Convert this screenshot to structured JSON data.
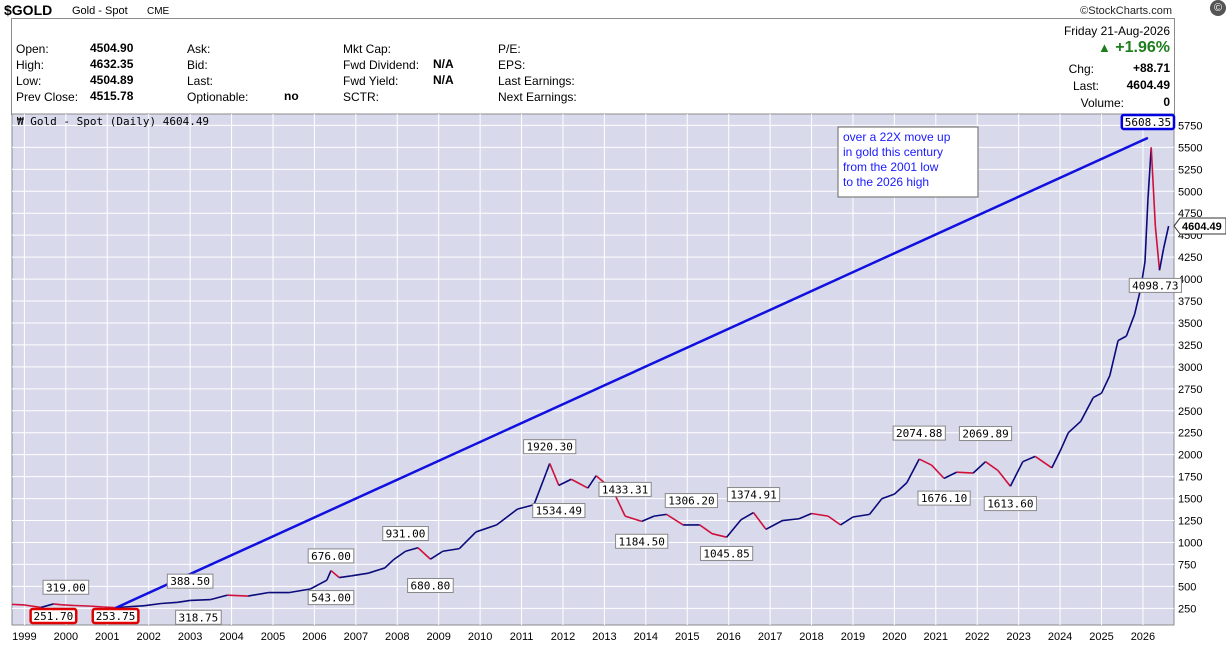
{
  "header": {
    "symbol": "$GOLD",
    "name": "Gold - Spot",
    "exchange": "CME",
    "brand": "©StockCharts.com"
  },
  "quote": {
    "open_label": "Open:",
    "open": "4504.90",
    "high_label": "High:",
    "high": "4632.35",
    "low_label": "Low:",
    "low": "4504.89",
    "prev_close_label": "Prev Close:",
    "prev_close": "4515.78",
    "ask_label": "Ask:",
    "bid_label": "Bid:",
    "last_label": "Last:",
    "optionable_label": "Optionable:",
    "optionable": "no",
    "mktcap_label": "Mkt Cap:",
    "fwd_div_label": "Fwd Dividend:",
    "fwd_div": "N/A",
    "fwd_yield_label": "Fwd Yield:",
    "fwd_yield": "N/A",
    "sctr_label": "SCTR:",
    "pe_label": "P/E:",
    "eps_label": "EPS:",
    "last_earn_label": "Last Earnings:",
    "next_earn_label": "Next Earnings:",
    "date": "Friday  21-Aug-2026",
    "pct_change": "+1.96%",
    "chg_label": "Chg:",
    "chg": "+88.71",
    "last2_label": "Last:",
    "last": "4604.49",
    "volume_label": "Volume:",
    "volume": "0"
  },
  "legend": "Gold - Spot (Daily) 4604.49",
  "colors": {
    "plot_bg": "#d9d9ec",
    "grid": "#ffffff",
    "price_up": "#0a0a7a",
    "price_down": "#d0103a",
    "trendline": "#1010e0",
    "highlight_red": "#e00000",
    "highlight_blue": "#0000e0",
    "annotation_text": "#1a1aff"
  },
  "chart_data": {
    "type": "line",
    "title": "Gold - Spot (Daily) 4604.49",
    "x_ticks": [
      "1999",
      "2000",
      "2001",
      "2002",
      "2003",
      "2004",
      "2005",
      "2006",
      "2007",
      "2008",
      "2009",
      "2010",
      "2011",
      "2012",
      "2013",
      "2014",
      "2015",
      "2016",
      "2017",
      "2018",
      "2019",
      "2020",
      "2021",
      "2022",
      "2023",
      "2024",
      "2025",
      "2026"
    ],
    "y_ticks": [
      250,
      500,
      750,
      1000,
      1250,
      1500,
      1750,
      2000,
      2250,
      2500,
      2750,
      3000,
      3250,
      3500,
      3750,
      4000,
      4250,
      4500,
      4750,
      5000,
      5250,
      5500,
      5750
    ],
    "ylim": [
      60,
      5880
    ],
    "xlim": [
      1998.7,
      2026.75
    ],
    "grid": true,
    "series": [
      {
        "x": [
          1998.7,
          1999.0,
          1999.4,
          1999.7,
          1999.9,
          2000.2,
          2000.6,
          2000.9,
          2001.2,
          2001.5,
          2001.9,
          2002.3,
          2002.7,
          2003.0,
          2003.5,
          2003.9,
          2004.4,
          2004.9,
          2005.4,
          2005.9,
          2006.3,
          2006.4,
          2006.6,
          2006.9,
          2007.3,
          2007.7,
          2007.9,
          2008.2,
          2008.5,
          2008.8,
          2009.1,
          2009.5,
          2009.9,
          2010.4,
          2010.9,
          2011.3,
          2011.6,
          2011.68,
          2011.9,
          2012.2,
          2012.6,
          2012.8,
          2013.2,
          2013.5,
          2013.9,
          2014.2,
          2014.5,
          2014.9,
          2015.3,
          2015.6,
          2015.95,
          2016.3,
          2016.6,
          2016.9,
          2017.3,
          2017.7,
          2018.0,
          2018.4,
          2018.7,
          2019.0,
          2019.4,
          2019.7,
          2020.0,
          2020.3,
          2020.6,
          2020.9,
          2021.2,
          2021.5,
          2021.9,
          2022.2,
          2022.5,
          2022.8,
          2023.1,
          2023.4,
          2023.8,
          2024.0,
          2024.2,
          2024.5,
          2024.8,
          2025.0,
          2025.2,
          2025.4,
          2025.6,
          2025.8,
          2025.95,
          2026.05,
          2026.12,
          2026.2,
          2026.3,
          2026.4,
          2026.5,
          2026.62
        ],
        "y": [
          295,
          288,
          260,
          300,
          290,
          282,
          275,
          265,
          258,
          268,
          280,
          305,
          318,
          340,
          350,
          400,
          390,
          430,
          430,
          470,
          570,
          680,
          600,
          620,
          650,
          710,
          800,
          900,
          940,
          810,
          900,
          930,
          1120,
          1200,
          1380,
          1430,
          1800,
          1900,
          1650,
          1720,
          1620,
          1760,
          1600,
          1300,
          1240,
          1300,
          1320,
          1200,
          1200,
          1100,
          1060,
          1260,
          1340,
          1150,
          1250,
          1270,
          1330,
          1300,
          1200,
          1290,
          1320,
          1500,
          1550,
          1680,
          1950,
          1880,
          1730,
          1800,
          1790,
          1920,
          1820,
          1640,
          1920,
          1980,
          1850,
          2040,
          2250,
          2380,
          2650,
          2700,
          2900,
          3300,
          3350,
          3600,
          3900,
          4200,
          4900,
          5500,
          4600,
          4100,
          4350,
          4604
        ]
      }
    ],
    "annotations": [
      {
        "label": "319.00",
        "x": 2000.0,
        "y": 319
      },
      {
        "label": "251.70",
        "x": 1999.7,
        "y": 251.7,
        "style": "red-box"
      },
      {
        "label": "253.75",
        "x": 2001.2,
        "y": 253.75,
        "style": "red-box"
      },
      {
        "label": "388.50",
        "x": 2003.0,
        "y": 388.5
      },
      {
        "label": "318.75",
        "x": 2003.2,
        "y": 318.75
      },
      {
        "label": "676.00",
        "x": 2006.4,
        "y": 676
      },
      {
        "label": "543.00",
        "x": 2006.4,
        "y": 543
      },
      {
        "label": "931.00",
        "x": 2008.2,
        "y": 931
      },
      {
        "label": "680.80",
        "x": 2008.8,
        "y": 680.8
      },
      {
        "label": "1920.30",
        "x": 2011.68,
        "y": 1920.3
      },
      {
        "label": "1534.49",
        "x": 2011.9,
        "y": 1534.49
      },
      {
        "label": "1433.31",
        "x": 2013.5,
        "y": 1433.31
      },
      {
        "label": "1184.50",
        "x": 2013.9,
        "y": 1184.5
      },
      {
        "label": "1306.20",
        "x": 2015.1,
        "y": 1306.2
      },
      {
        "label": "1045.85",
        "x": 2015.95,
        "y": 1045.85
      },
      {
        "label": "1374.91",
        "x": 2016.6,
        "y": 1374.91
      },
      {
        "label": "2074.88",
        "x": 2020.6,
        "y": 2074.88
      },
      {
        "label": "1676.10",
        "x": 2021.2,
        "y": 1676.1
      },
      {
        "label": "2069.89",
        "x": 2022.2,
        "y": 2069.89
      },
      {
        "label": "1613.60",
        "x": 2022.8,
        "y": 1613.6
      },
      {
        "label": "5608.35",
        "x": 2026.12,
        "y": 5608.35,
        "style": "blue-box"
      },
      {
        "label": "4098.73",
        "x": 2026.3,
        "y": 4098.73
      }
    ],
    "trendline": {
      "x1": 2001.2,
      "y1": 253.75,
      "x2": 2026.12,
      "y2": 5608.35
    },
    "note_lines": [
      "over a 22X move up",
      "in gold this century",
      "from the 2001 low",
      "to the 2026 high"
    ],
    "last_price_tag": "4604.49"
  }
}
